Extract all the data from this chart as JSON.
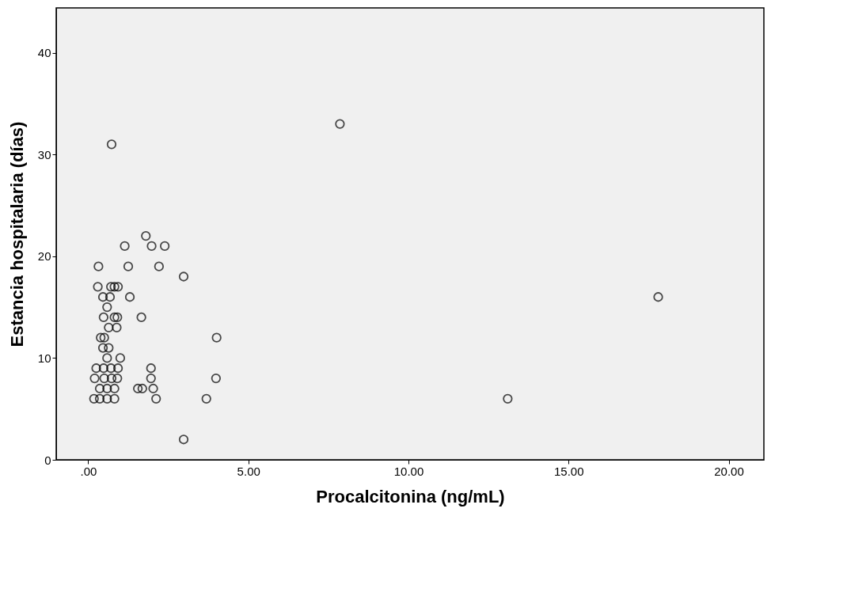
{
  "chart_data": {
    "type": "scatter",
    "xlabel": "Procalcitonina (ng/mL)",
    "ylabel": "Estancia hospitalaria (días)",
    "xlim": [
      -1.0,
      21.1
    ],
    "ylim": [
      0,
      44.4
    ],
    "xticks": [
      {
        "value": 0,
        "label": ".00"
      },
      {
        "value": 5,
        "label": "5.00"
      },
      {
        "value": 10,
        "label": "10.00"
      },
      {
        "value": 15,
        "label": "15.00"
      },
      {
        "value": 20,
        "label": "20.00"
      }
    ],
    "yticks": [
      0,
      10,
      20,
      30,
      40
    ],
    "grid": false,
    "marker": "circle",
    "series": [
      {
        "color": "#000000",
        "x": [
          0.73,
          7.86,
          17.8,
          13.1,
          1.8,
          1.14,
          1.98,
          2.39,
          0.32,
          1.25,
          2.21,
          2.98,
          0.3,
          0.71,
          0.82,
          0.93,
          0.46,
          0.68,
          1.3,
          0.59,
          0.48,
          0.82,
          0.91,
          1.66,
          0.64,
          0.89,
          0.39,
          0.5,
          4.01,
          0.46,
          0.64,
          0.59,
          1.0,
          0.25,
          0.48,
          0.71,
          0.93,
          1.96,
          0.2,
          0.5,
          0.73,
          0.91,
          1.96,
          3.99,
          0.36,
          0.59,
          0.82,
          1.55,
          1.69,
          2.03,
          0.18,
          0.36,
          0.59,
          0.82,
          2.12,
          3.69,
          2.98
        ],
        "values": [
          31,
          33,
          16,
          6,
          22,
          21,
          21,
          21,
          19,
          19,
          19,
          18,
          17,
          17,
          17,
          17,
          16,
          16,
          16,
          15,
          14,
          14,
          14,
          14,
          13,
          13,
          12,
          12,
          12,
          11,
          11,
          10,
          10,
          9,
          9,
          9,
          9,
          9,
          8,
          8,
          8,
          8,
          8,
          8,
          7,
          7,
          7,
          7,
          7,
          7,
          6,
          6,
          6,
          6,
          6,
          6,
          2
        ]
      }
    ]
  }
}
